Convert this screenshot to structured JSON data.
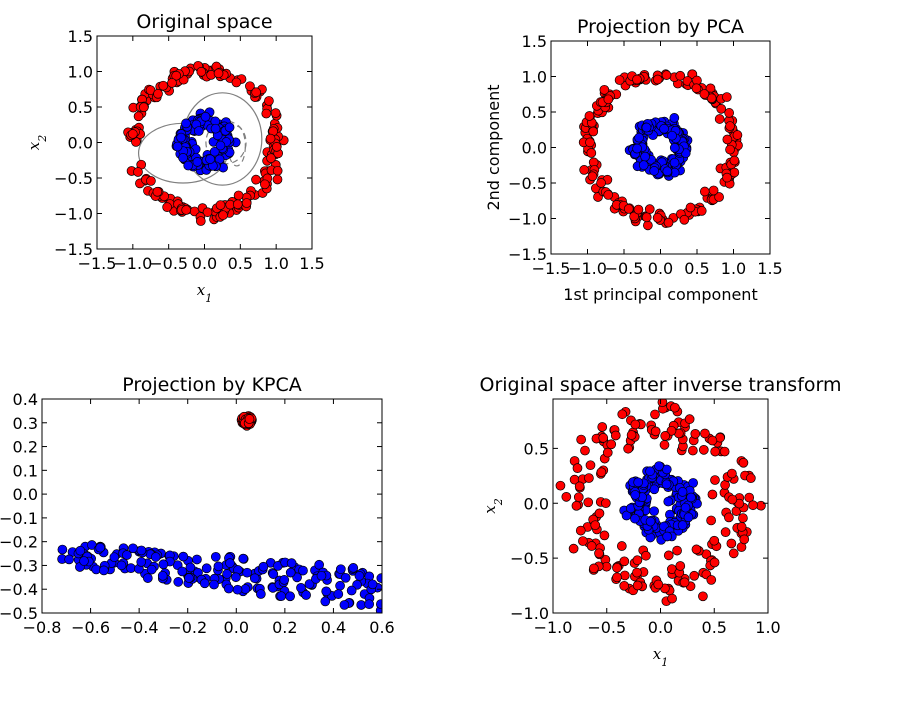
{
  "chart_data": [
    {
      "type": "scatter",
      "title": "Original space",
      "xlabel": "x1",
      "ylabel": "x2",
      "xlim": [
        -1.5,
        1.5
      ],
      "ylim": [
        -1.5,
        1.5
      ],
      "xticks": [
        -1.5,
        -1.0,
        -0.5,
        0.0,
        0.5,
        1.0,
        1.5
      ],
      "yticks": [
        -1.5,
        -1.0,
        -0.5,
        0.0,
        0.5,
        1.0,
        1.5
      ],
      "xtick_labels": [
        "−1.5",
        "−1.0",
        "−0.5",
        "0.0",
        "0.5",
        "1.0",
        "1.5"
      ],
      "ytick_labels": [
        "−1.5",
        "−1.0",
        "−0.5",
        "0.0",
        "0.5",
        "1.0",
        "1.5"
      ],
      "grid": false,
      "colors": {
        "outer": "#ff0000",
        "inner": "#0000ff",
        "contour": "#808080"
      },
      "series": [
        {
          "color": "#ff0000",
          "shape": "circle",
          "center": [
            0.0,
            0.0
          ],
          "radius": 1.0,
          "noise": 0.05,
          "count": 200
        },
        {
          "color": "#0000ff",
          "shape": "circle",
          "center": [
            0.0,
            0.0
          ],
          "radius": 0.3,
          "noise": 0.05,
          "count": 200
        }
      ],
      "contours": [
        {
          "style": "solid",
          "center": [
            -0.3,
            -0.15
          ],
          "rx": 0.62,
          "ry": 0.42
        },
        {
          "style": "solid",
          "center": [
            0.25,
            0.05
          ],
          "rx": 0.55,
          "ry": 0.65
        },
        {
          "style": "dashed",
          "center": [
            0.3,
            0.0
          ],
          "rx": 0.28,
          "ry": 0.3
        },
        {
          "style": "dashed",
          "center": [
            0.45,
            -0.05
          ],
          "rx": 0.12,
          "ry": 0.28
        }
      ]
    },
    {
      "type": "scatter",
      "title": "Projection by PCA",
      "xlabel": "1st principal component",
      "ylabel": "2nd component",
      "xlim": [
        -1.5,
        1.5
      ],
      "ylim": [
        -1.5,
        1.5
      ],
      "xticks": [
        -1.5,
        -1.0,
        -0.5,
        0.0,
        0.5,
        1.0,
        1.5
      ],
      "yticks": [
        -1.5,
        -1.0,
        -0.5,
        0.0,
        0.5,
        1.0,
        1.5
      ],
      "xtick_labels": [
        "−1.5",
        "−1.0",
        "−0.5",
        "0.0",
        "0.5",
        "1.0",
        "1.5"
      ],
      "ytick_labels": [
        "−1.5",
        "−1.0",
        "−0.5",
        "0.0",
        "0.5",
        "1.0",
        "1.5"
      ],
      "grid": false,
      "series": [
        {
          "color": "#ff0000",
          "shape": "circle",
          "center": [
            0.0,
            0.0
          ],
          "radius": 1.0,
          "noise": 0.05,
          "count": 200
        },
        {
          "color": "#0000ff",
          "shape": "circle",
          "center": [
            0.0,
            0.0
          ],
          "radius": 0.3,
          "noise": 0.05,
          "count": 200
        }
      ]
    },
    {
      "type": "scatter",
      "title": "Projection by KPCA",
      "xlabel": "",
      "ylabel": "",
      "xlim": [
        -0.8,
        0.6
      ],
      "ylim": [
        -0.5,
        0.4
      ],
      "xticks": [
        -0.8,
        -0.6,
        -0.4,
        -0.2,
        0.0,
        0.2,
        0.4,
        0.6
      ],
      "yticks": [
        -0.5,
        -0.4,
        -0.3,
        -0.2,
        -0.1,
        0.0,
        0.1,
        0.2,
        0.3,
        0.4
      ],
      "xtick_labels": [
        "−0.8",
        "−0.6",
        "−0.4",
        "−0.2",
        "0.0",
        "0.2",
        "0.4",
        "0.6"
      ],
      "ytick_labels": [
        "−0.5",
        "−0.4",
        "−0.3",
        "−0.2",
        "−0.1",
        "0.0",
        "0.1",
        "0.2",
        "0.3",
        "0.4"
      ],
      "grid": false,
      "series": [
        {
          "color": "#ff0000",
          "shape": "cluster",
          "center": [
            0.045,
            0.31
          ],
          "spread": 0.008,
          "count": 200
        },
        {
          "color": "#0000ff",
          "shape": "band",
          "x_range": [
            -0.72,
            0.6
          ],
          "y_top": [
            -0.2,
            -0.32
          ],
          "y_bottom": [
            -0.3,
            -0.5
          ],
          "count": 200
        }
      ]
    },
    {
      "type": "scatter",
      "title": "Original space after inverse transform",
      "xlabel": "x1",
      "ylabel": "x2",
      "xlim": [
        -1.0,
        1.0
      ],
      "ylim": [
        -1.0,
        0.95
      ],
      "xticks": [
        -1.0,
        -0.5,
        0.0,
        0.5,
        1.0
      ],
      "yticks": [
        -1.0,
        -0.5,
        0.0,
        0.5
      ],
      "xtick_labels": [
        "−1.0",
        "−0.5",
        "0.0",
        "0.5",
        "1.0"
      ],
      "ytick_labels": [
        "−1.0",
        "−0.5",
        "0.0",
        "0.5"
      ],
      "grid": false,
      "series": [
        {
          "color": "#ff0000",
          "shape": "circle",
          "center": [
            0.0,
            0.0
          ],
          "radius": 0.72,
          "noise": 0.1,
          "count": 200
        },
        {
          "color": "#0000ff",
          "shape": "circle",
          "center": [
            0.0,
            0.0
          ],
          "radius": 0.24,
          "noise": 0.05,
          "count": 200
        }
      ]
    }
  ]
}
